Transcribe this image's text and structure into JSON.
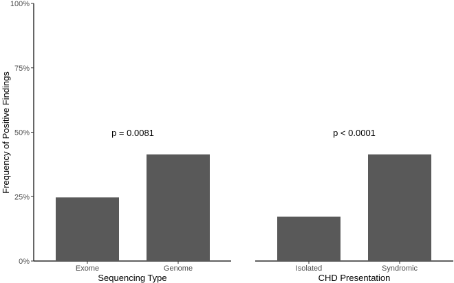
{
  "chart_data": {
    "type": "bar",
    "ylabel": "Frequency of Positive Findings",
    "ylim": [
      0,
      100
    ],
    "yticks": [
      0,
      25,
      50,
      75,
      100
    ],
    "ytick_labels": [
      "0%",
      "25%",
      "50%",
      "75%",
      "100%"
    ],
    "bar_color": "#595959",
    "panels": [
      {
        "xlabel": "Sequencing Type",
        "categories": [
          "Exome",
          "Genome"
        ],
        "values": [
          24.7,
          41.4
        ],
        "annotation": "p = 0.0081"
      },
      {
        "xlabel": "CHD Presentation",
        "categories": [
          "Isolated",
          "Syndromic"
        ],
        "values": [
          17.2,
          41.4
        ],
        "annotation": "p < 0.0001"
      }
    ]
  }
}
